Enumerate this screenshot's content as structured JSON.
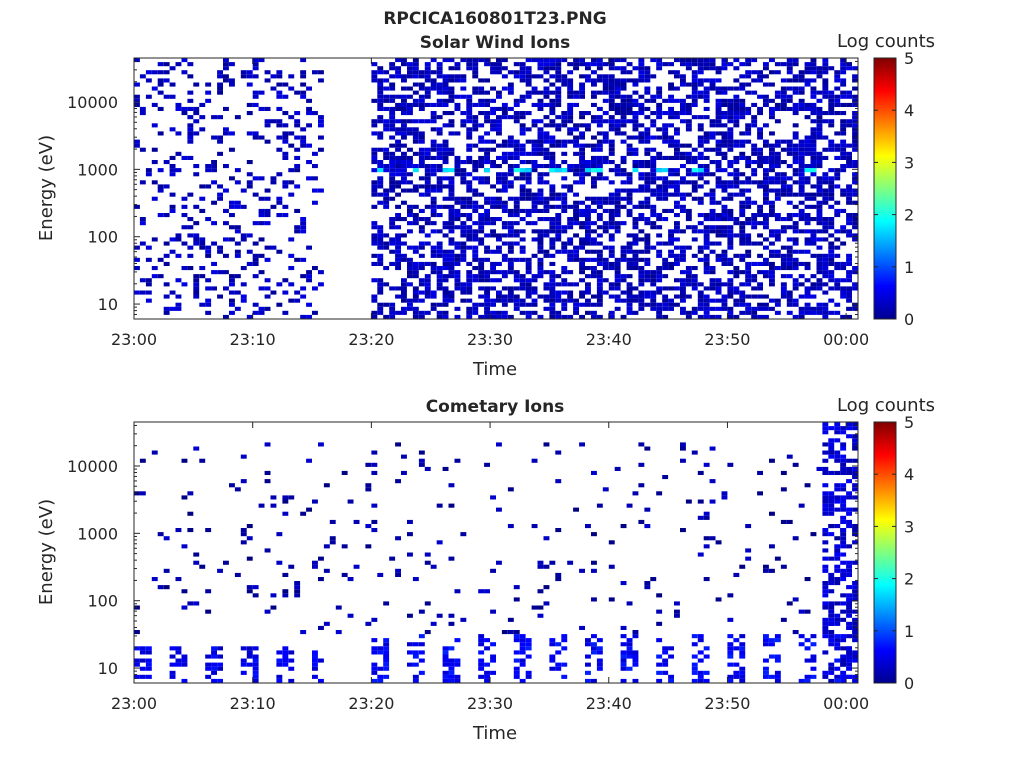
{
  "figure": {
    "title": "RPCICA160801T23.PNG"
  },
  "chart_data": [
    {
      "type": "heatmap",
      "title": "Solar Wind Ions",
      "xlabel": "Time",
      "ylabel": "Energy (eV)",
      "x_ticks": [
        "23:00",
        "23:10",
        "23:20",
        "23:30",
        "23:40",
        "23:50",
        "00:00"
      ],
      "xlim": [
        "23:00",
        "00:01"
      ],
      "y_ticks": [
        {
          "value": 10,
          "label": "10"
        },
        {
          "value": 100,
          "label": "100"
        },
        {
          "value": 1000,
          "label": "1000"
        },
        {
          "value": 10000,
          "label": "10000"
        }
      ],
      "ylim": [
        6,
        45000
      ],
      "y_scale": "log",
      "colorbar": {
        "label": "Log counts",
        "ticks": [
          "0",
          "1",
          "2",
          "3",
          "4",
          "5"
        ],
        "range": [
          0,
          5
        ],
        "colormap": "jet"
      },
      "regions": [
        {
          "t_start": "23:00",
          "t_end": "23:16",
          "e_min": 6,
          "e_max": 40000,
          "level": 0.3,
          "density": "sparse"
        },
        {
          "t_start": "23:20",
          "t_end": "00:01",
          "e_min": 6,
          "e_max": 40000,
          "level": 0.3,
          "density": "dense"
        },
        {
          "t_start": "23:20",
          "t_end": "00:01",
          "e_min": 800,
          "e_max": 1000,
          "level": 1.8,
          "density": "periodic"
        }
      ]
    },
    {
      "type": "heatmap",
      "title": "Cometary Ions",
      "xlabel": "Time",
      "ylabel": "Energy (eV)",
      "x_ticks": [
        "23:00",
        "23:10",
        "23:20",
        "23:30",
        "23:40",
        "23:50",
        "00:00"
      ],
      "xlim": [
        "23:00",
        "00:01"
      ],
      "y_ticks": [
        {
          "value": 10,
          "label": "10"
        },
        {
          "value": 100,
          "label": "100"
        },
        {
          "value": 1000,
          "label": "1000"
        },
        {
          "value": 10000,
          "label": "10000"
        }
      ],
      "ylim": [
        6,
        45000
      ],
      "y_scale": "log",
      "colorbar": {
        "label": "Log counts",
        "ticks": [
          "0",
          "1",
          "2",
          "3",
          "4",
          "5"
        ],
        "range": [
          0,
          5
        ],
        "colormap": "jet"
      },
      "regions": [
        {
          "t_start": "23:00",
          "t_end": "23:16",
          "e_min": 6,
          "e_max": 20,
          "level": 0.5,
          "density": "periodic"
        },
        {
          "t_start": "23:20",
          "t_end": "00:01",
          "e_min": 6,
          "e_max": 30,
          "level": 0.6,
          "density": "periodic"
        },
        {
          "t_start": "23:00",
          "t_end": "00:01",
          "e_min": 30,
          "e_max": 20000,
          "level": 0.2,
          "density": "very-sparse"
        },
        {
          "t_start": "23:58",
          "t_end": "00:01",
          "e_min": 6,
          "e_max": 40000,
          "level": 0.4,
          "density": "dense"
        }
      ]
    }
  ]
}
